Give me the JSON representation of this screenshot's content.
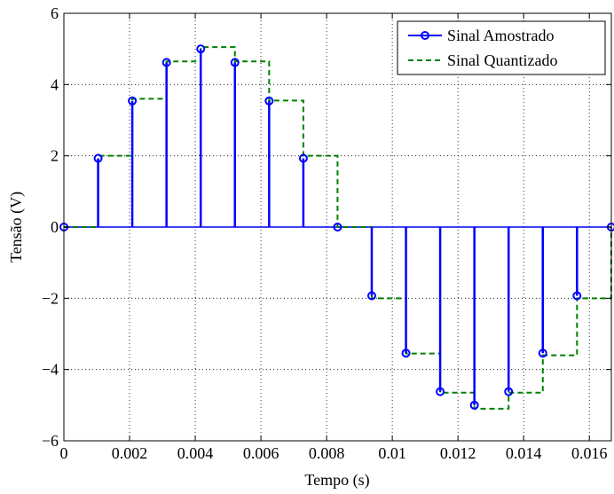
{
  "chart_data": {
    "type": "line",
    "xlabel": "Tempo (s)",
    "ylabel": "Tensão (V)",
    "xlim": [
      0,
      0.01667
    ],
    "ylim": [
      -6,
      6
    ],
    "grid": true,
    "legend_position": "top-right",
    "x_ticks": [
      0,
      0.002,
      0.004,
      0.006,
      0.008,
      0.01,
      0.012,
      0.014,
      0.016
    ],
    "x_tick_labels": [
      "0",
      "0.002",
      "0.004",
      "0.006",
      "0.008",
      "0.01",
      "0.012",
      "0.014",
      "0.016"
    ],
    "y_ticks": [
      -6,
      -4,
      -2,
      0,
      2,
      4,
      6
    ],
    "y_tick_labels": [
      "−6",
      "−4",
      "−2",
      "0",
      "2",
      "4",
      "6"
    ],
    "series": [
      {
        "name": "Sinal Amostrado",
        "style": "stem",
        "color": "#0000ff",
        "x": [
          0,
          0.001042,
          0.002083,
          0.003125,
          0.004167,
          0.005208,
          0.00625,
          0.007292,
          0.008333,
          0.009375,
          0.010417,
          0.011458,
          0.0125,
          0.013542,
          0.014583,
          0.015625,
          0.016667
        ],
        "values": [
          0,
          1.93,
          3.54,
          4.62,
          5.0,
          4.62,
          3.54,
          1.93,
          0,
          -1.93,
          -3.54,
          -4.62,
          -5.0,
          -4.62,
          -3.54,
          -1.93,
          0
        ]
      },
      {
        "name": "Sinal Quantizado",
        "style": "step-dashed",
        "color": "#008000",
        "x": [
          0,
          0.001042,
          0.002083,
          0.003125,
          0.004167,
          0.005208,
          0.00625,
          0.007292,
          0.008333,
          0.009375,
          0.010417,
          0.011458,
          0.0125,
          0.013542,
          0.014583,
          0.015625,
          0.016667
        ],
        "values": [
          0,
          2.0,
          3.6,
          4.65,
          5.05,
          4.65,
          3.55,
          2.0,
          0,
          -2.0,
          -3.55,
          -4.65,
          -5.1,
          -4.65,
          -3.6,
          -2.0,
          0
        ]
      }
    ]
  }
}
